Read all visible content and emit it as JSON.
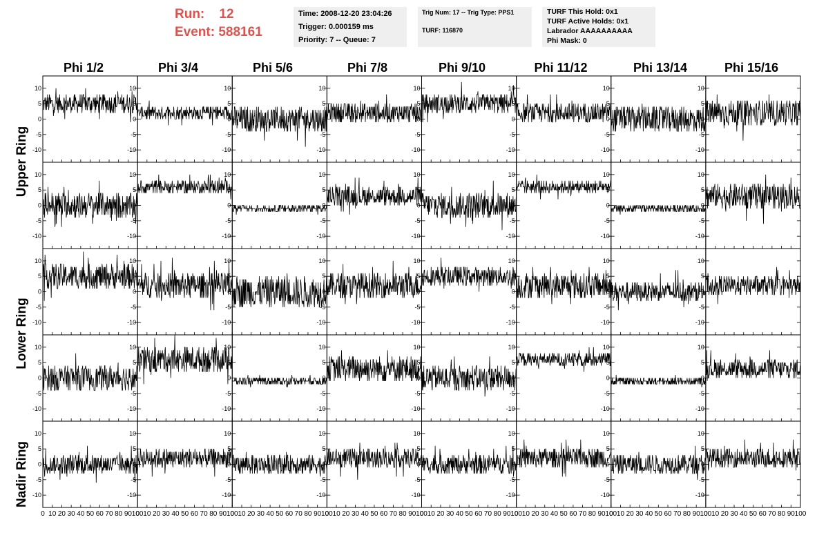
{
  "header": {
    "run_label": "Run:",
    "run_value": "12",
    "event_label": "Event:",
    "event_value": "588161",
    "time": "Time: 2008-12-20 23:04:26",
    "trigger": "Trigger: 0.000159 ms",
    "priority": "Priority: 7 -- Queue: 7",
    "trig_num": "Trig Num: 17 -- Trig Type: PPS1",
    "turf": "TURF: 116870",
    "turf_hold": "TURF This Hold: 0x1",
    "turf_active": "TURF Active Holds: 0x1",
    "labrador": "Labrador AAAAAAAAAA",
    "phi_mask": "Phi Mask: 0"
  },
  "columns": [
    "Phi 1/2",
    "Phi 3/4",
    "Phi 5/6",
    "Phi 7/8",
    "Phi 9/10",
    "Phi 11/12",
    "Phi 13/14",
    "Phi 15/16"
  ],
  "rings": [
    "Upper Ring",
    "Lower Ring",
    "Nadir Ring"
  ],
  "chart_data": {
    "type": "line",
    "rows": 5,
    "cols": 8,
    "xlim": [
      0,
      100
    ],
    "ylim": [
      -14,
      14
    ],
    "ytick_labels": [
      "10",
      "5",
      "0",
      "-5",
      "-10"
    ],
    "ytick_values": [
      10,
      5,
      0,
      -5,
      -10
    ],
    "xtick_labels": [
      "0",
      "10",
      "20",
      "30",
      "40",
      "50",
      "60",
      "70",
      "80",
      "90",
      "100"
    ],
    "xtick_values": [
      0,
      10,
      20,
      30,
      40,
      50,
      60,
      70,
      80,
      90,
      100
    ],
    "samples": 260,
    "line_color": "#000000",
    "panel_baselines": [
      [
        5,
        2,
        0,
        2,
        5,
        2,
        0,
        2
      ],
      [
        0,
        6,
        -1,
        3,
        0,
        6,
        -1,
        3
      ],
      [
        5,
        2,
        0,
        2,
        5,
        2,
        0,
        2
      ],
      [
        0,
        6,
        -1,
        3,
        0,
        6,
        -1,
        3
      ],
      [
        0,
        2,
        0,
        2,
        0,
        2,
        0,
        2
      ]
    ],
    "panel_amplitudes": [
      [
        3,
        2,
        4,
        3,
        3,
        3,
        4,
        4
      ],
      [
        4,
        2,
        1,
        3,
        4,
        2,
        1,
        4
      ],
      [
        4,
        4,
        5,
        4,
        3,
        4,
        3,
        3
      ],
      [
        4,
        4,
        1,
        4,
        4,
        2,
        1,
        3
      ],
      [
        3,
        3,
        3,
        3,
        3,
        3,
        3,
        3
      ]
    ]
  }
}
